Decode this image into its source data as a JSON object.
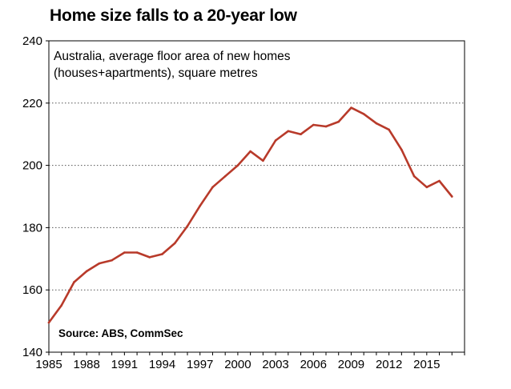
{
  "chart_data": {
    "type": "line",
    "title": "Home size falls to a 20-year low",
    "subtitle_lines": [
      "Australia, average floor area of new homes",
      "(houses+apartments), square metres"
    ],
    "source": "Source: ABS, CommSec",
    "xlabel": "",
    "ylabel": "",
    "ylim": [
      140,
      240
    ],
    "xlim": [
      1985,
      2018
    ],
    "yticks": [
      140,
      160,
      180,
      200,
      220,
      240
    ],
    "xticks": [
      1985,
      1988,
      1991,
      1994,
      1997,
      2000,
      2003,
      2006,
      2009,
      2012,
      2015
    ],
    "grid": "horizontal dotted",
    "series": [
      {
        "color": "#b83a2a",
        "x": [
          1985,
          1986,
          1987,
          1988,
          1989,
          1990,
          1991,
          1992,
          1993,
          1994,
          1995,
          1996,
          1997,
          1998,
          1999,
          2000,
          2001,
          2002,
          2003,
          2004,
          2005,
          2006,
          2007,
          2008,
          2009,
          2010,
          2011,
          2012,
          2013,
          2014,
          2015,
          2016,
          2017
        ],
        "values": [
          149.5,
          155,
          162.5,
          166,
          168.5,
          169.5,
          172,
          172,
          170.5,
          171.5,
          175,
          180.5,
          187,
          193,
          196.5,
          200,
          204.5,
          201.5,
          208,
          211,
          210,
          213,
          212.5,
          214,
          218.5,
          216.5,
          213.5,
          211.5,
          205,
          196.5,
          193,
          195,
          190
        ]
      }
    ]
  }
}
